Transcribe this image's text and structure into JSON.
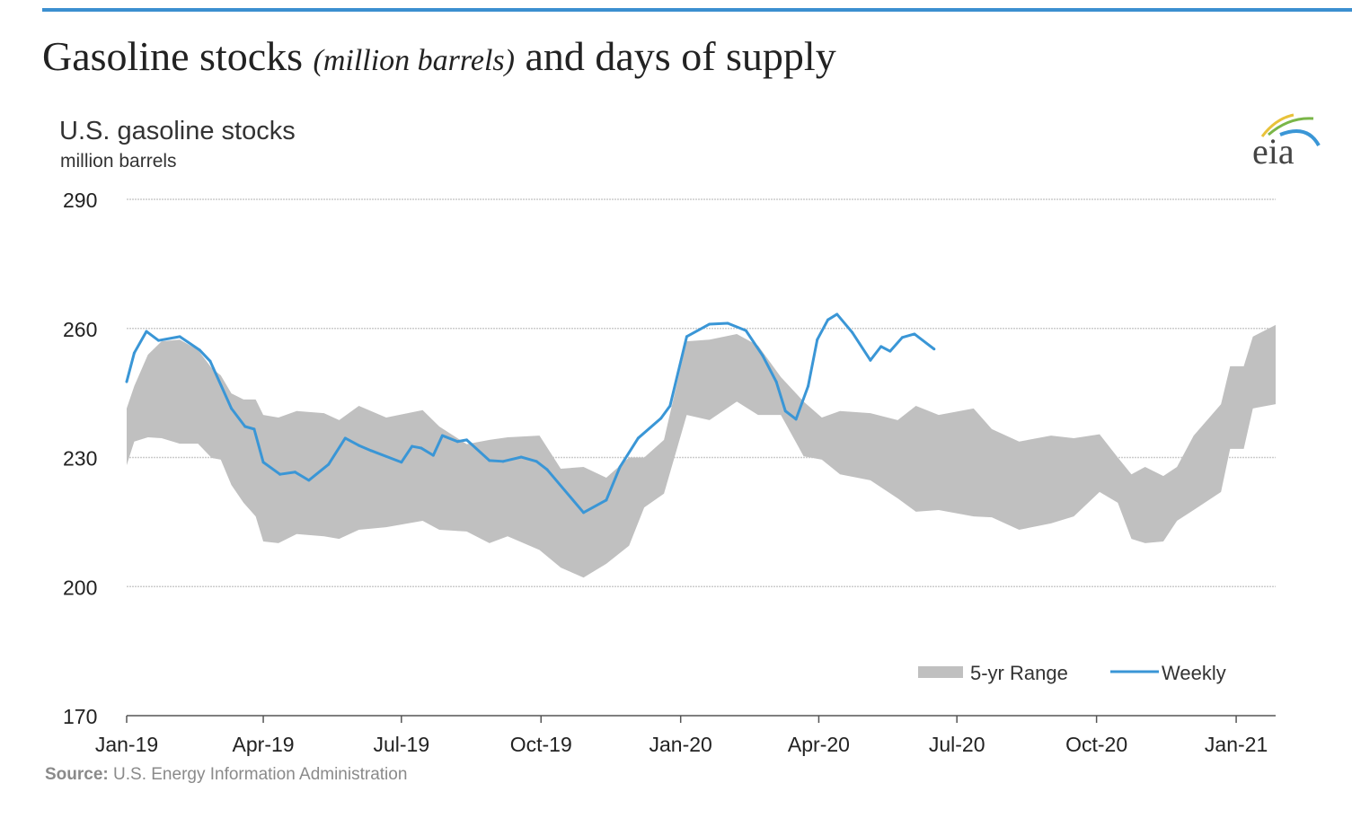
{
  "page_title": {
    "main": "Gasoline stocks",
    "italic": "(million barrels)",
    "rest": "and days of supply"
  },
  "source": {
    "label": "Source:",
    "text": "U.S. Energy Information Administration"
  },
  "logo": {
    "text": "eia"
  },
  "colors": {
    "accent_bar": "#3b8fd0",
    "weekly": "#3a96d6",
    "range": "#c0c0c0",
    "grid": "#cccccc"
  },
  "chart_data": {
    "type": "area+line",
    "title": "U.S. gasoline stocks",
    "subtitle": "million barrels",
    "ylim": [
      170,
      290
    ],
    "yticks": [
      170,
      200,
      230,
      260,
      290
    ],
    "xlim": [
      "2019-01-01",
      "2021-01-27"
    ],
    "xticks": [
      {
        "date": "2019-01-01",
        "label": "Jan-19"
      },
      {
        "date": "2019-04-01",
        "label": "Apr-19"
      },
      {
        "date": "2019-07-01",
        "label": "Jul-19"
      },
      {
        "date": "2019-10-01",
        "label": "Oct-19"
      },
      {
        "date": "2020-01-01",
        "label": "Jan-20"
      },
      {
        "date": "2020-04-01",
        "label": "Apr-20"
      },
      {
        "date": "2020-07-01",
        "label": "Jul-20"
      },
      {
        "date": "2020-10-01",
        "label": "Oct-20"
      },
      {
        "date": "2021-01-01",
        "label": "Jan-21"
      }
    ],
    "grid": true,
    "legend_position": "bottom-right",
    "series": [
      {
        "name": "5-yr Range",
        "type": "range",
        "points": [
          [
            "2019-01-01",
            228.2,
            241.4
          ],
          [
            "2019-01-06",
            233.7,
            246.6
          ],
          [
            "2019-01-15",
            234.7,
            253.9
          ],
          [
            "2019-01-24",
            234.5,
            257.0
          ],
          [
            "2019-02-05",
            233.2,
            257.4
          ],
          [
            "2019-02-17",
            233.2,
            255.0
          ],
          [
            "2019-02-26",
            229.9,
            250.8
          ],
          [
            "2019-03-04",
            229.5,
            249.1
          ],
          [
            "2019-03-11",
            223.6,
            244.9
          ],
          [
            "2019-03-19",
            219.5,
            243.5
          ],
          [
            "2019-03-27",
            216.3,
            243.5
          ],
          [
            "2019-04-01",
            210.5,
            239.9
          ],
          [
            "2019-04-11",
            210.1,
            239.3
          ],
          [
            "2019-04-23",
            212.2,
            240.8
          ],
          [
            "2019-05-11",
            211.7,
            240.3
          ],
          [
            "2019-05-21",
            211.1,
            238.7
          ],
          [
            "2019-06-03",
            213.2,
            242.0
          ],
          [
            "2019-06-21",
            213.8,
            239.3
          ],
          [
            "2019-07-15",
            215.3,
            241.0
          ],
          [
            "2019-07-26",
            213.2,
            237.2
          ],
          [
            "2019-08-13",
            212.8,
            233.1
          ],
          [
            "2019-08-28",
            210.1,
            234.1
          ],
          [
            "2019-09-09",
            211.7,
            234.7
          ],
          [
            "2019-09-30",
            208.5,
            235.1
          ],
          [
            "2019-10-14",
            204.4,
            227.4
          ],
          [
            "2019-10-29",
            202.1,
            227.8
          ],
          [
            "2019-11-13",
            205.3,
            225.3
          ],
          [
            "2019-11-28",
            209.5,
            230.0
          ],
          [
            "2019-12-08",
            218.4,
            230.0
          ],
          [
            "2019-12-21",
            221.6,
            234.1
          ],
          [
            "2020-01-05",
            239.9,
            257.0
          ],
          [
            "2020-01-20",
            238.7,
            257.4
          ],
          [
            "2020-02-07",
            243.0,
            258.7
          ],
          [
            "2020-02-21",
            239.9,
            256.0
          ],
          [
            "2020-03-07",
            239.9,
            248.7
          ],
          [
            "2020-03-22",
            230.3,
            243.0
          ],
          [
            "2020-04-03",
            229.5,
            239.3
          ],
          [
            "2020-04-15",
            226.1,
            240.8
          ],
          [
            "2020-05-05",
            224.7,
            240.3
          ],
          [
            "2020-05-23",
            220.5,
            238.7
          ],
          [
            "2020-06-04",
            217.4,
            242.0
          ],
          [
            "2020-06-19",
            217.8,
            239.9
          ],
          [
            "2020-07-12",
            216.3,
            241.4
          ],
          [
            "2020-07-24",
            216.1,
            236.6
          ],
          [
            "2020-08-11",
            213.2,
            233.7
          ],
          [
            "2020-09-01",
            214.7,
            235.1
          ],
          [
            "2020-09-16",
            216.3,
            234.5
          ],
          [
            "2020-10-03",
            222.0,
            235.4
          ],
          [
            "2020-10-15",
            219.5,
            230.0
          ],
          [
            "2020-10-24",
            211.1,
            226.1
          ],
          [
            "2020-11-02",
            210.1,
            227.8
          ],
          [
            "2020-11-14",
            210.5,
            225.7
          ],
          [
            "2020-11-23",
            215.3,
            227.8
          ],
          [
            "2020-12-04",
            217.8,
            235.1
          ],
          [
            "2020-12-22",
            222.0,
            242.4
          ],
          [
            "2020-12-28",
            232.0,
            251.2
          ],
          [
            "2021-01-06",
            232.0,
            251.2
          ],
          [
            "2021-01-12",
            241.4,
            258.1
          ],
          [
            "2021-01-27",
            242.4,
            260.8
          ]
        ]
      },
      {
        "name": "Weekly",
        "type": "line",
        "points": [
          [
            "2019-01-01",
            247.6
          ],
          [
            "2019-01-06",
            254.3
          ],
          [
            "2019-01-14",
            259.3
          ],
          [
            "2019-01-22",
            257.2
          ],
          [
            "2019-02-05",
            258.1
          ],
          [
            "2019-02-18",
            255.0
          ],
          [
            "2019-02-25",
            252.4
          ],
          [
            "2019-03-11",
            241.4
          ],
          [
            "2019-03-20",
            237.2
          ],
          [
            "2019-03-26",
            236.6
          ],
          [
            "2019-04-01",
            228.9
          ],
          [
            "2019-04-12",
            226.1
          ],
          [
            "2019-04-22",
            226.6
          ],
          [
            "2019-05-01",
            224.7
          ],
          [
            "2019-05-14",
            228.4
          ],
          [
            "2019-05-25",
            234.5
          ],
          [
            "2019-06-03",
            232.8
          ],
          [
            "2019-06-11",
            231.6
          ],
          [
            "2019-07-01",
            228.9
          ],
          [
            "2019-07-08",
            232.6
          ],
          [
            "2019-07-14",
            232.2
          ],
          [
            "2019-07-22",
            230.5
          ],
          [
            "2019-07-28",
            235.1
          ],
          [
            "2019-08-07",
            233.7
          ],
          [
            "2019-08-13",
            234.1
          ],
          [
            "2019-08-28",
            229.3
          ],
          [
            "2019-09-06",
            229.1
          ],
          [
            "2019-09-18",
            230.1
          ],
          [
            "2019-09-28",
            229.1
          ],
          [
            "2019-10-05",
            227.2
          ],
          [
            "2019-10-29",
            217.2
          ],
          [
            "2019-11-13",
            220.1
          ],
          [
            "2019-11-22",
            227.8
          ],
          [
            "2019-12-04",
            234.5
          ],
          [
            "2019-12-19",
            239.1
          ],
          [
            "2019-12-25",
            242.0
          ],
          [
            "2020-01-05",
            258.1
          ],
          [
            "2020-01-20",
            261.0
          ],
          [
            "2020-02-01",
            261.2
          ],
          [
            "2020-02-13",
            259.5
          ],
          [
            "2020-02-24",
            253.7
          ],
          [
            "2020-03-04",
            247.6
          ],
          [
            "2020-03-10",
            240.8
          ],
          [
            "2020-03-17",
            238.9
          ],
          [
            "2020-03-25",
            246.6
          ],
          [
            "2020-03-31",
            257.4
          ],
          [
            "2020-04-07",
            262.0
          ],
          [
            "2020-04-13",
            263.3
          ],
          [
            "2020-04-23",
            259.1
          ],
          [
            "2020-05-05",
            252.6
          ],
          [
            "2020-05-12",
            255.8
          ],
          [
            "2020-05-18",
            254.7
          ],
          [
            "2020-05-26",
            257.9
          ],
          [
            "2020-06-03",
            258.7
          ],
          [
            "2020-06-16",
            255.2
          ]
        ]
      }
    ]
  }
}
